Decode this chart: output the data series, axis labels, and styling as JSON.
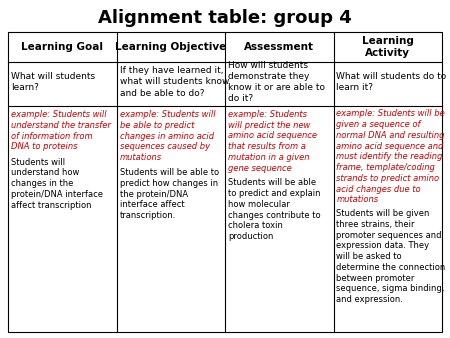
{
  "title": "Alignment table: group 4",
  "title_fontsize": 13,
  "columns": [
    "Learning Goal",
    "Learning Objective",
    "Assessment",
    "Learning\nActivity"
  ],
  "header_fontsize": 7.5,
  "row2_texts": [
    "What will students\nlearn?",
    "If they have learned it,\nwhat will students know\nand be able to do?",
    "How will students\ndemonstrate they\nknow it or are able to\ndo it?",
    "What will students do to\nlearn it?"
  ],
  "row3_example_texts": [
    "example: Students will\nunderstand the transfer\nof information from\nDNA to proteins",
    "example: Students will\nbe able to predict\nchanges in amino acid\nsequences caused by\nmutations",
    "example: Students\nwill predict the new\namino acid sequence\nthat results from a\nmutation in a given\ngene sequence",
    "example: Students will be\ngiven a sequence of\nnormal DNA and resulting\namino acid sequence and\nmust identify the reading\nframe, template/coding\nstrands to predict amino\nacid changes due to\nmutations"
  ],
  "row3_normal_texts": [
    "Students will\nunderstand how\nchanges in the\nprotein/DNA interface\naffect transcription",
    "Students will be able to\npredict how changes in\nthe protein/DNA\ninterface affect\ntranscription.",
    "Students will be able\nto predict and explain\nhow molecular\nchanges contribute to\ncholera toxin\nproduction",
    "Students will be given\nthree strains, their\npromoter sequences and\nexpression data. They\nwill be asked to\ndetermine the connection\nbetween promoter\nsequence, sigma binding,\nand expression."
  ],
  "example_color": "#cc0000",
  "normal_color": "#000000",
  "bg_color": "#ffffff",
  "border_color": "#000000",
  "row2_fontsize": 6.5,
  "row3_fontsize": 6.0,
  "fig_width": 4.5,
  "fig_height": 3.38,
  "dpi": 100
}
